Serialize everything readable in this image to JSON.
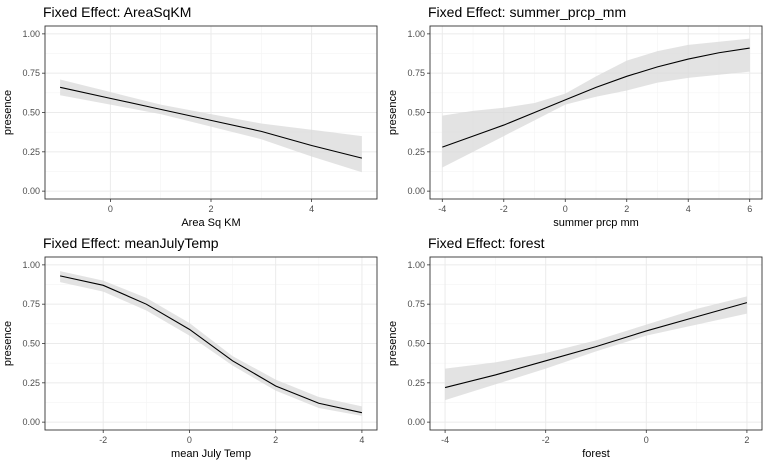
{
  "chart_data": [
    {
      "type": "line",
      "title": "Fixed Effect: AreaSqKM",
      "xlabel": "Area Sq KM",
      "ylabel": "presence",
      "xlim": [
        -1.3,
        5.3
      ],
      "ylim": [
        -0.05,
        1.05
      ],
      "x_ticks": [
        0,
        2,
        4
      ],
      "x_tick_labels": [
        "0",
        "2",
        "4"
      ],
      "y_ticks": [
        0,
        0.25,
        0.5,
        0.75,
        1.0
      ],
      "y_tick_labels": [
        "0.00",
        "0.25",
        "0.50",
        "0.75",
        "1.00"
      ],
      "grid": true,
      "x": [
        -1,
        0,
        1,
        2,
        3,
        4,
        5
      ],
      "fit": [
        0.66,
        0.59,
        0.52,
        0.45,
        0.38,
        0.29,
        0.21
      ],
      "lower": [
        0.61,
        0.55,
        0.49,
        0.41,
        0.33,
        0.22,
        0.12
      ],
      "upper": [
        0.71,
        0.63,
        0.55,
        0.49,
        0.43,
        0.39,
        0.35
      ]
    },
    {
      "type": "line",
      "title": "Fixed Effect: summer_prcp_mm",
      "xlabel": "summer prcp mm",
      "ylabel": "presence",
      "xlim": [
        -4.4,
        6.4
      ],
      "ylim": [
        -0.05,
        1.05
      ],
      "x_ticks": [
        -4,
        -2,
        0,
        2,
        4,
        6
      ],
      "x_tick_labels": [
        "-4",
        "-2",
        "0",
        "2",
        "4",
        "6"
      ],
      "y_ticks": [
        0,
        0.25,
        0.5,
        0.75,
        1.0
      ],
      "y_tick_labels": [
        "0.00",
        "0.25",
        "0.50",
        "0.75",
        "1.00"
      ],
      "grid": true,
      "x": [
        -4,
        -3,
        -2,
        -1,
        0,
        1,
        2,
        3,
        4,
        5,
        6
      ],
      "fit": [
        0.28,
        0.35,
        0.42,
        0.5,
        0.58,
        0.66,
        0.73,
        0.79,
        0.84,
        0.88,
        0.91
      ],
      "lower": [
        0.15,
        0.25,
        0.35,
        0.45,
        0.55,
        0.6,
        0.64,
        0.69,
        0.72,
        0.74,
        0.76
      ],
      "upper": [
        0.48,
        0.51,
        0.53,
        0.56,
        0.62,
        0.73,
        0.83,
        0.89,
        0.93,
        0.95,
        0.97
      ]
    },
    {
      "type": "line",
      "title": "Fixed Effect: meanJulyTemp",
      "xlabel": "mean July Temp",
      "ylabel": "presence",
      "xlim": [
        -3.35,
        4.35
      ],
      "ylim": [
        -0.05,
        1.05
      ],
      "x_ticks": [
        -2,
        0,
        2,
        4
      ],
      "x_tick_labels": [
        "-2",
        "0",
        "2",
        "4"
      ],
      "y_ticks": [
        0,
        0.25,
        0.5,
        0.75,
        1.0
      ],
      "y_tick_labels": [
        "0.00",
        "0.25",
        "0.50",
        "0.75",
        "1.00"
      ],
      "grid": true,
      "x": [
        -3,
        -2,
        -1,
        0,
        1,
        2,
        3,
        4
      ],
      "fit": [
        0.93,
        0.87,
        0.75,
        0.59,
        0.39,
        0.23,
        0.12,
        0.06
      ],
      "lower": [
        0.89,
        0.83,
        0.71,
        0.55,
        0.36,
        0.2,
        0.09,
        0.04
      ],
      "upper": [
        0.96,
        0.9,
        0.79,
        0.63,
        0.42,
        0.27,
        0.16,
        0.1
      ]
    },
    {
      "type": "line",
      "title": "Fixed Effect: forest",
      "xlabel": "forest",
      "ylabel": "presence",
      "xlim": [
        -4.3,
        2.3
      ],
      "ylim": [
        -0.05,
        1.05
      ],
      "x_ticks": [
        -4,
        -2,
        0,
        2
      ],
      "x_tick_labels": [
        "-4",
        "-2",
        "0",
        "2"
      ],
      "y_ticks": [
        0,
        0.25,
        0.5,
        0.75,
        1.0
      ],
      "y_tick_labels": [
        "0.00",
        "0.25",
        "0.50",
        "0.75",
        "1.00"
      ],
      "grid": true,
      "x": [
        -4,
        -3,
        -2,
        -1,
        0,
        1,
        2
      ],
      "fit": [
        0.22,
        0.3,
        0.39,
        0.48,
        0.58,
        0.67,
        0.76
      ],
      "lower": [
        0.14,
        0.24,
        0.34,
        0.45,
        0.55,
        0.62,
        0.69
      ],
      "upper": [
        0.34,
        0.38,
        0.44,
        0.52,
        0.62,
        0.72,
        0.8
      ]
    }
  ]
}
